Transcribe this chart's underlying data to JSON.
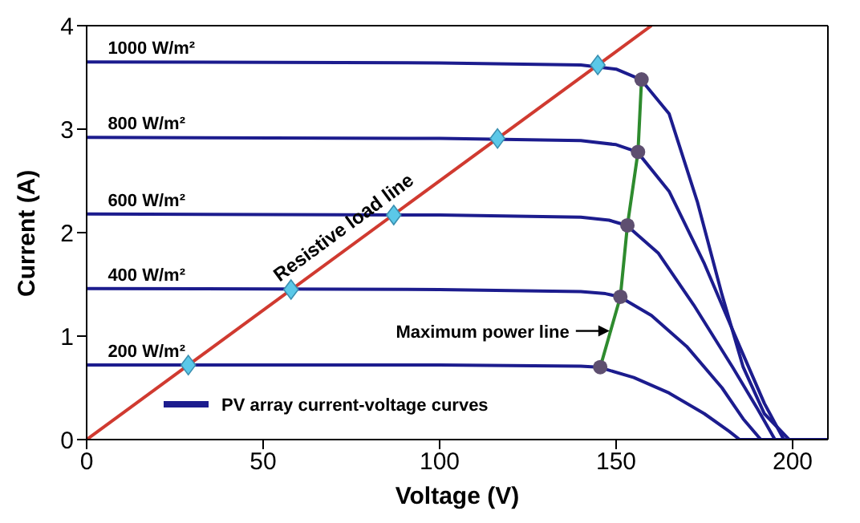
{
  "chart_data": {
    "type": "line",
    "xlabel": "Voltage (V)",
    "ylabel": "Current (A)",
    "xlim": [
      0,
      210
    ],
    "xticks": [
      0,
      50,
      100,
      150,
      200
    ],
    "ylim": [
      0,
      4
    ],
    "yticks": [
      0,
      1,
      2,
      3,
      4
    ],
    "grid": false,
    "legend": "bottom left",
    "annotations": [
      {
        "text": "1000 W/m²",
        "x": 6,
        "y": 3.65
      },
      {
        "text": "800 W/m²",
        "x": 6,
        "y": 2.92
      },
      {
        "text": "600 W/m²",
        "x": 6,
        "y": 2.18
      },
      {
        "text": "400 W/m²",
        "x": 6,
        "y": 1.46
      },
      {
        "text": "200 W/m²",
        "x": 6,
        "y": 0.72
      },
      {
        "text": "Resistive load line",
        "x": 76,
        "y": 1.9
      },
      {
        "text": "Maximum power line",
        "x": 149.5,
        "y": 1.05
      }
    ],
    "series": [
      {
        "name": "PV array current-voltage curves",
        "color": "#1c1c8e",
        "x": [
          0,
          100,
          140,
          150,
          157,
          165,
          173,
          180,
          186,
          192,
          199,
          210
        ],
        "values": [
          3.65,
          3.64,
          3.62,
          3.58,
          3.48,
          3.15,
          2.3,
          1.4,
          0.7,
          0.25,
          0,
          0
        ]
      },
      {
        "color": "#1c1c8e",
        "x": [
          0,
          100,
          140,
          150,
          156,
          165,
          175,
          185,
          192,
          197.5,
          210
        ],
        "values": [
          2.92,
          2.91,
          2.89,
          2.85,
          2.78,
          2.4,
          1.7,
          0.9,
          0.35,
          0,
          0
        ]
      },
      {
        "color": "#1c1c8e",
        "x": [
          0,
          100,
          140,
          148,
          153,
          162,
          172,
          183,
          190,
          195,
          210
        ],
        "values": [
          2.18,
          2.17,
          2.15,
          2.12,
          2.07,
          1.8,
          1.3,
          0.7,
          0.3,
          0,
          0
        ]
      },
      {
        "color": "#1c1c8e",
        "x": [
          0,
          100,
          140,
          147,
          151,
          160,
          170,
          180,
          186,
          191,
          210
        ],
        "values": [
          1.46,
          1.45,
          1.43,
          1.41,
          1.38,
          1.2,
          0.9,
          0.5,
          0.2,
          0,
          0
        ]
      },
      {
        "color": "#1c1c8e",
        "x": [
          0,
          100,
          140,
          145,
          155,
          165,
          175,
          182,
          185,
          210
        ],
        "values": [
          0.72,
          0.72,
          0.71,
          0.7,
          0.6,
          0.45,
          0.25,
          0.08,
          0,
          0
        ]
      },
      {
        "color": "#d03a30",
        "x": [
          0,
          160
        ],
        "values": [
          0,
          4
        ]
      },
      {
        "color": "#2e8b2e",
        "x": [
          145.5,
          151.2,
          153.2,
          156.2,
          157.2
        ],
        "values": [
          0.7,
          1.38,
          2.07,
          2.78,
          3.48
        ]
      },
      {
        "type": "scatter",
        "color": "#5bc8e8",
        "marker": "diamond",
        "x": [
          28.8,
          57.9,
          87,
          116.4,
          144.8
        ],
        "values": [
          0.72,
          1.45,
          2.17,
          2.91,
          3.62
        ]
      },
      {
        "type": "scatter",
        "color": "#5e4f70",
        "marker": "circle",
        "x": [
          145.5,
          151.2,
          153.2,
          156.2,
          157.2
        ],
        "values": [
          0.7,
          1.38,
          2.07,
          2.78,
          3.48
        ]
      }
    ]
  }
}
